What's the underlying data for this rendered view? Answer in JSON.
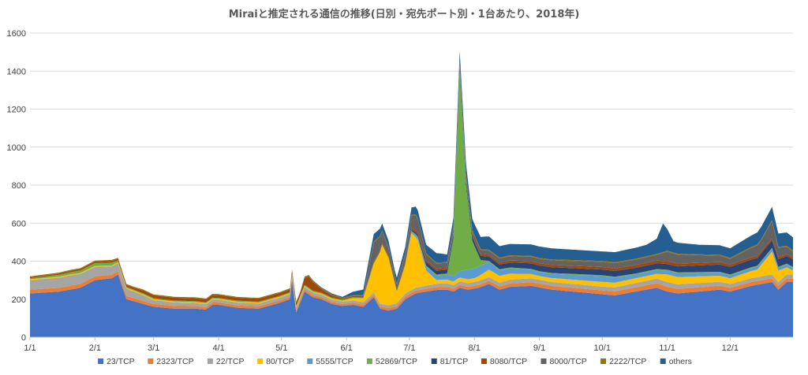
{
  "chart_data": {
    "type": "area",
    "stacked": true,
    "title": "Miraiと推定される通信の推移(日別・宛先ポート別・1台あたり、2018年)",
    "xlabel": "",
    "ylabel": "",
    "ylim": [
      0,
      1600
    ],
    "yticks": [
      0,
      200,
      400,
      600,
      800,
      1000,
      1200,
      1400,
      1600
    ],
    "xlim": [
      1,
      365
    ],
    "xticks": [
      {
        "label": "1/1",
        "day": 1
      },
      {
        "label": "2/1",
        "day": 32
      },
      {
        "label": "3/1",
        "day": 60
      },
      {
        "label": "4/1",
        "day": 91
      },
      {
        "label": "5/1",
        "day": 121
      },
      {
        "label": "6/1",
        "day": 152
      },
      {
        "label": "7/1",
        "day": 182
      },
      {
        "label": "8/1",
        "day": 213
      },
      {
        "label": "9/1",
        "day": 244
      },
      {
        "label": "10/1",
        "day": 274
      },
      {
        "label": "11/1",
        "day": 305
      },
      {
        "label": "12/1",
        "day": 335
      }
    ],
    "grid": "horizontal",
    "legend_position": "bottom",
    "series": [
      {
        "name": "23/TCP",
        "color": "#4472c4",
        "points": [
          [
            1,
            230
          ],
          [
            15,
            240
          ],
          [
            25,
            260
          ],
          [
            32,
            300
          ],
          [
            40,
            310
          ],
          [
            43,
            330
          ],
          [
            47,
            200
          ],
          [
            55,
            175
          ],
          [
            60,
            160
          ],
          [
            70,
            150
          ],
          [
            80,
            150
          ],
          [
            85,
            145
          ],
          [
            88,
            170
          ],
          [
            91,
            170
          ],
          [
            100,
            155
          ],
          [
            110,
            150
          ],
          [
            120,
            180
          ],
          [
            125,
            200
          ],
          [
            126,
            300
          ],
          [
            128,
            130
          ],
          [
            132,
            240
          ],
          [
            136,
            210
          ],
          [
            140,
            200
          ],
          [
            145,
            175
          ],
          [
            150,
            165
          ],
          [
            155,
            170
          ],
          [
            160,
            160
          ],
          [
            165,
            210
          ],
          [
            168,
            150
          ],
          [
            172,
            140
          ],
          [
            176,
            150
          ],
          [
            180,
            200
          ],
          [
            185,
            230
          ],
          [
            190,
            240
          ],
          [
            196,
            250
          ],
          [
            200,
            250
          ],
          [
            203,
            240
          ],
          [
            206,
            260
          ],
          [
            210,
            250
          ],
          [
            215,
            260
          ],
          [
            220,
            280
          ],
          [
            225,
            250
          ],
          [
            230,
            265
          ],
          [
            240,
            270
          ],
          [
            250,
            250
          ],
          [
            260,
            240
          ],
          [
            270,
            230
          ],
          [
            280,
            220
          ],
          [
            290,
            240
          ],
          [
            295,
            250
          ],
          [
            300,
            260
          ],
          [
            305,
            240
          ],
          [
            310,
            230
          ],
          [
            320,
            240
          ],
          [
            330,
            250
          ],
          [
            335,
            240
          ],
          [
            345,
            270
          ],
          [
            350,
            280
          ],
          [
            355,
            290
          ],
          [
            358,
            250
          ],
          [
            362,
            290
          ],
          [
            365,
            290
          ]
        ]
      },
      {
        "name": "2323/TCP",
        "color": "#ed7d31",
        "points": [
          [
            1,
            20
          ],
          [
            32,
            20
          ],
          [
            60,
            15
          ],
          [
            91,
            12
          ],
          [
            121,
            12
          ],
          [
            152,
            10
          ],
          [
            182,
            15
          ],
          [
            213,
            15
          ],
          [
            244,
            20
          ],
          [
            274,
            20
          ],
          [
            305,
            25
          ],
          [
            335,
            20
          ],
          [
            365,
            20
          ]
        ]
      },
      {
        "name": "22/TCP",
        "color": "#a5a5a5",
        "points": [
          [
            1,
            50
          ],
          [
            20,
            55
          ],
          [
            32,
            50
          ],
          [
            45,
            40
          ],
          [
            55,
            30
          ],
          [
            60,
            20
          ],
          [
            91,
            15
          ],
          [
            121,
            15
          ],
          [
            152,
            12
          ],
          [
            182,
            15
          ],
          [
            213,
            20
          ],
          [
            244,
            20
          ],
          [
            274,
            20
          ],
          [
            305,
            25
          ],
          [
            335,
            20
          ],
          [
            365,
            20
          ]
        ]
      },
      {
        "name": "80/TCP",
        "color": "#ffc000",
        "points": [
          [
            1,
            5
          ],
          [
            150,
            5
          ],
          [
            160,
            20
          ],
          [
            165,
            150
          ],
          [
            169,
            310
          ],
          [
            172,
            250
          ],
          [
            176,
            60
          ],
          [
            180,
            150
          ],
          [
            183,
            300
          ],
          [
            186,
            250
          ],
          [
            190,
            80
          ],
          [
            195,
            20
          ],
          [
            213,
            20
          ],
          [
            220,
            40
          ],
          [
            244,
            20
          ],
          [
            274,
            25
          ],
          [
            300,
            25
          ],
          [
            305,
            40
          ],
          [
            335,
            30
          ],
          [
            348,
            40
          ],
          [
            355,
            120
          ],
          [
            358,
            60
          ],
          [
            365,
            20
          ]
        ]
      },
      {
        "name": "5555/TCP",
        "color": "#5b9bd5",
        "points": [
          [
            1,
            0
          ],
          [
            180,
            0
          ],
          [
            190,
            20
          ],
          [
            205,
            30
          ],
          [
            210,
            50
          ],
          [
            215,
            50
          ],
          [
            225,
            30
          ],
          [
            244,
            20
          ],
          [
            274,
            30
          ],
          [
            290,
            20
          ],
          [
            305,
            20
          ],
          [
            335,
            15
          ],
          [
            365,
            15
          ]
        ]
      },
      {
        "name": "52869/TCP",
        "color": "#70ad47",
        "points": [
          [
            1,
            5
          ],
          [
            15,
            10
          ],
          [
            32,
            15
          ],
          [
            40,
            15
          ],
          [
            45,
            5
          ],
          [
            60,
            5
          ],
          [
            200,
            5
          ],
          [
            203,
            200
          ],
          [
            206,
            1050
          ],
          [
            209,
            450
          ],
          [
            212,
            150
          ],
          [
            216,
            30
          ],
          [
            220,
            5
          ],
          [
            365,
            5
          ]
        ]
      },
      {
        "name": "81/TCP",
        "color": "#264478",
        "points": [
          [
            1,
            0
          ],
          [
            180,
            0
          ],
          [
            190,
            20
          ],
          [
            210,
            20
          ],
          [
            244,
            30
          ],
          [
            274,
            30
          ],
          [
            305,
            30
          ],
          [
            335,
            40
          ],
          [
            365,
            40
          ]
        ]
      },
      {
        "name": "8080/TCP",
        "color": "#9e480e",
        "points": [
          [
            1,
            5
          ],
          [
            50,
            10
          ],
          [
            55,
            15
          ],
          [
            130,
            15
          ],
          [
            134,
            60
          ],
          [
            140,
            20
          ],
          [
            150,
            5
          ],
          [
            180,
            10
          ],
          [
            213,
            10
          ],
          [
            305,
            15
          ],
          [
            365,
            10
          ]
        ]
      },
      {
        "name": "8000/TCP",
        "color": "#636363",
        "points": [
          [
            1,
            0
          ],
          [
            160,
            0
          ],
          [
            165,
            100
          ],
          [
            169,
            60
          ],
          [
            175,
            20
          ],
          [
            180,
            40
          ],
          [
            185,
            80
          ],
          [
            190,
            30
          ],
          [
            213,
            20
          ],
          [
            300,
            30
          ],
          [
            305,
            50
          ],
          [
            335,
            30
          ],
          [
            350,
            60
          ],
          [
            355,
            90
          ],
          [
            358,
            50
          ],
          [
            365,
            30
          ]
        ]
      },
      {
        "name": "2222/TCP",
        "color": "#997300",
        "points": [
          [
            1,
            5
          ],
          [
            365,
            5
          ]
        ]
      },
      {
        "name": "others",
        "color": "#255e91",
        "points": [
          [
            1,
            0
          ],
          [
            120,
            0
          ],
          [
            150,
            5
          ],
          [
            160,
            30
          ],
          [
            165,
            40
          ],
          [
            175,
            30
          ],
          [
            185,
            40
          ],
          [
            195,
            50
          ],
          [
            200,
            40
          ],
          [
            213,
            60
          ],
          [
            220,
            70
          ],
          [
            225,
            60
          ],
          [
            244,
            60
          ],
          [
            274,
            50
          ],
          [
            295,
            60
          ],
          [
            300,
            80
          ],
          [
            303,
            150
          ],
          [
            308,
            60
          ],
          [
            320,
            50
          ],
          [
            335,
            50
          ],
          [
            345,
            60
          ],
          [
            355,
            70
          ],
          [
            365,
            70
          ]
        ]
      }
    ]
  }
}
